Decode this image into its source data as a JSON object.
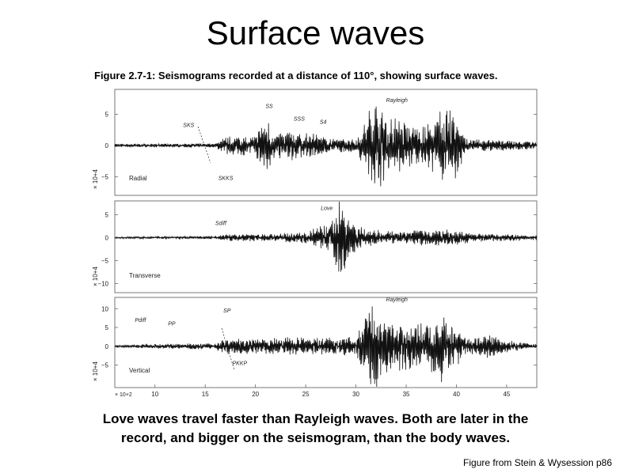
{
  "slide": {
    "title": "Surface waves",
    "figure_caption": "Figure 2.7-1: Seismograms recorded at a distance of 110°, showing surface waves.",
    "body_line1": "Love waves  travel faster than Rayleigh waves. Both are later in the",
    "body_line2": "record, and bigger on the seismogram, than the body waves.",
    "credit": "Figure from Stein & Wysession p86"
  },
  "chart_data": [
    {
      "type": "line",
      "panel": "Radial",
      "ylabel": "× 10+4",
      "xlim": [
        6,
        48
      ],
      "ylim": [
        -8,
        9
      ],
      "yticks": [
        5,
        0,
        -5
      ],
      "phase_labels": [
        {
          "text": "SKS",
          "x": 12.8,
          "y": 3.0
        },
        {
          "text": "SKKS",
          "x": 16.3,
          "y": -5.5
        },
        {
          "text": "SS",
          "x": 21.0,
          "y": 6.0
        },
        {
          "text": "SSS",
          "x": 23.8,
          "y": 4.0
        },
        {
          "text": "S4",
          "x": 26.4,
          "y": 3.5
        },
        {
          "text": "Rayleigh",
          "x": 33.0,
          "y": 7.0
        }
      ],
      "trace_envelope": [
        [
          6,
          0.25
        ],
        [
          16,
          0.3
        ],
        [
          17,
          1.5
        ],
        [
          20,
          1.5
        ],
        [
          21,
          4.5
        ],
        [
          22,
          1.8
        ],
        [
          23.5,
          2.8
        ],
        [
          25,
          2.0
        ],
        [
          28,
          1.0
        ],
        [
          30,
          1.0
        ],
        [
          31,
          4.5
        ],
        [
          32,
          7.0
        ],
        [
          33,
          5.0
        ],
        [
          35,
          3.5
        ],
        [
          37,
          3.0
        ],
        [
          38.5,
          5.5
        ],
        [
          40,
          5.0
        ],
        [
          41,
          1.0
        ],
        [
          48,
          0.6
        ]
      ]
    },
    {
      "type": "line",
      "panel": "Transverse",
      "ylabel": "× 10+4",
      "xlim": [
        6,
        48
      ],
      "ylim": [
        -12,
        8
      ],
      "yticks": [
        5,
        0,
        -5,
        -10
      ],
      "phase_labels": [
        {
          "text": "Sdiff",
          "x": 16.0,
          "y": 2.7
        },
        {
          "text": "Love",
          "x": 26.5,
          "y": 6.0
        }
      ],
      "trace_envelope": [
        [
          6,
          0.2
        ],
        [
          16,
          0.3
        ],
        [
          17,
          0.7
        ],
        [
          22,
          0.8
        ],
        [
          25,
          1.2
        ],
        [
          27,
          2.8
        ],
        [
          28.5,
          8.0
        ],
        [
          29.5,
          4.0
        ],
        [
          31,
          1.8
        ],
        [
          34,
          1.2
        ],
        [
          37,
          1.8
        ],
        [
          40,
          1.6
        ],
        [
          42,
          0.8
        ],
        [
          48,
          0.6
        ]
      ]
    },
    {
      "type": "line",
      "panel": "Vertical",
      "ylabel": "× 10+4",
      "xlim": [
        6,
        48
      ],
      "ylim": [
        -11,
        13
      ],
      "yticks": [
        10,
        5,
        0,
        -5
      ],
      "xlabel": "× 10+2",
      "xticks": [
        10,
        15,
        20,
        25,
        30,
        35,
        40,
        45
      ],
      "phase_labels": [
        {
          "text": "Pdiff",
          "x": 8.0,
          "y": 6.5
        },
        {
          "text": "PP",
          "x": 11.3,
          "y": 5.5
        },
        {
          "text": "SP",
          "x": 16.8,
          "y": 9.0
        },
        {
          "text": "PKKP",
          "x": 17.7,
          "y": -5.0
        },
        {
          "text": "Rayleigh",
          "x": 33.0,
          "y": 12.0
        }
      ],
      "trace_envelope": [
        [
          6,
          0.2
        ],
        [
          10,
          0.6
        ],
        [
          16,
          0.8
        ],
        [
          17,
          2.0
        ],
        [
          20,
          1.8
        ],
        [
          23,
          2.5
        ],
        [
          26,
          2.0
        ],
        [
          30,
          2.5
        ],
        [
          31,
          8.0
        ],
        [
          32,
          11.0
        ],
        [
          33,
          7.0
        ],
        [
          35,
          6.0
        ],
        [
          37,
          5.5
        ],
        [
          38.5,
          9.0
        ],
        [
          40,
          6.0
        ],
        [
          41,
          2.0
        ],
        [
          43,
          3.0
        ],
        [
          45,
          1.5
        ],
        [
          48,
          0.5
        ]
      ]
    }
  ]
}
